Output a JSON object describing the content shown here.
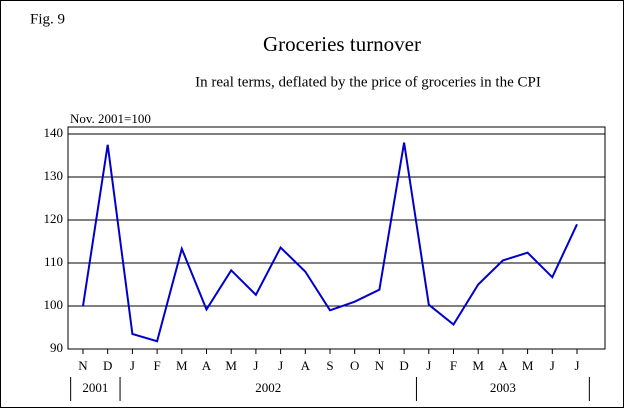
{
  "chart_data": {
    "type": "line",
    "figure_label": "Fig. 9",
    "title": "Groceries turnover",
    "subtitle": "In real terms, deflated by the price of groceries in the CPI",
    "y_label": "Nov. 2001=100",
    "categories": [
      "N",
      "D",
      "J",
      "F",
      "M",
      "A",
      "M",
      "J",
      "J",
      "A",
      "S",
      "O",
      "N",
      "D",
      "J",
      "F",
      "M",
      "A",
      "M",
      "J",
      "J"
    ],
    "series": [
      {
        "name": "Groceries turnover",
        "color": "#0000cc",
        "values": [
          100,
          137.5,
          93.5,
          91.8,
          113.3,
          99.2,
          108.3,
          102.6,
          113.6,
          108,
          99,
          101,
          103.8,
          138,
          100.3,
          95.7,
          105,
          110.6,
          112.4,
          106.7,
          119
        ]
      }
    ],
    "year_groups": [
      {
        "label": "2001",
        "months": 2
      },
      {
        "label": "2002",
        "months": 12
      },
      {
        "label": "2003",
        "months": 7
      }
    ],
    "ylim": [
      90,
      140
    ],
    "yticks": [
      90,
      100,
      110,
      120,
      130,
      140
    ],
    "grid": true
  }
}
